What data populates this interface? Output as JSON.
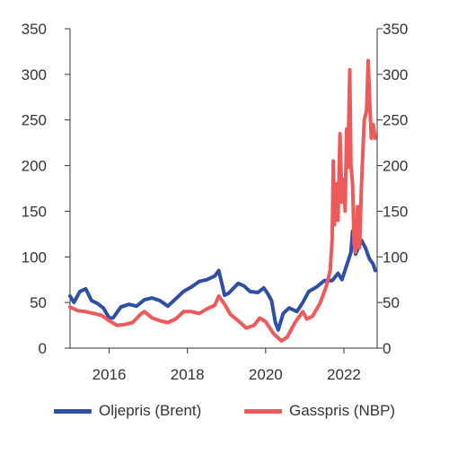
{
  "chart_data": {
    "type": "line",
    "title": "",
    "xlabel": "",
    "ylabel": "",
    "ylim": [
      0,
      350
    ],
    "y_ticks": [
      "0",
      "50",
      "100",
      "150",
      "200",
      "250",
      "300",
      "350"
    ],
    "x_ticks": [
      "2016",
      "2018",
      "2020",
      "2022"
    ],
    "grid": false,
    "legend_position": "bottom",
    "series": [
      {
        "name": "Oljepris (Brent)",
        "color": "#2e4fa3",
        "points": [
          [
            2015.0,
            57
          ],
          [
            2015.1,
            50
          ],
          [
            2015.25,
            62
          ],
          [
            2015.4,
            65
          ],
          [
            2015.55,
            52
          ],
          [
            2015.7,
            49
          ],
          [
            2015.85,
            44
          ],
          [
            2016.0,
            33
          ],
          [
            2016.1,
            33
          ],
          [
            2016.3,
            45
          ],
          [
            2016.5,
            48
          ],
          [
            2016.7,
            46
          ],
          [
            2016.9,
            53
          ],
          [
            2017.1,
            55
          ],
          [
            2017.3,
            52
          ],
          [
            2017.5,
            46
          ],
          [
            2017.7,
            54
          ],
          [
            2017.9,
            62
          ],
          [
            2018.1,
            67
          ],
          [
            2018.3,
            73
          ],
          [
            2018.5,
            75
          ],
          [
            2018.7,
            79
          ],
          [
            2018.8,
            85
          ],
          [
            2018.95,
            58
          ],
          [
            2019.05,
            60
          ],
          [
            2019.3,
            71
          ],
          [
            2019.45,
            68
          ],
          [
            2019.6,
            62
          ],
          [
            2019.8,
            61
          ],
          [
            2019.95,
            66
          ],
          [
            2020.05,
            60
          ],
          [
            2020.15,
            52
          ],
          [
            2020.25,
            28
          ],
          [
            2020.32,
            20
          ],
          [
            2020.45,
            38
          ],
          [
            2020.6,
            44
          ],
          [
            2020.8,
            40
          ],
          [
            2020.95,
            50
          ],
          [
            2021.1,
            62
          ],
          [
            2021.3,
            67
          ],
          [
            2021.5,
            74
          ],
          [
            2021.7,
            74
          ],
          [
            2021.85,
            82
          ],
          [
            2021.95,
            75
          ],
          [
            2022.05,
            88
          ],
          [
            2022.18,
            105
          ],
          [
            2022.22,
            128
          ],
          [
            2022.3,
            103
          ],
          [
            2022.45,
            118
          ],
          [
            2022.55,
            110
          ],
          [
            2022.65,
            98
          ],
          [
            2022.75,
            92
          ],
          [
            2022.8,
            85
          ]
        ]
      },
      {
        "name": "Gasspris (NBP)",
        "color": "#ee5a5a",
        "points": [
          [
            2015.0,
            45
          ],
          [
            2015.2,
            41
          ],
          [
            2015.4,
            40
          ],
          [
            2015.6,
            38
          ],
          [
            2015.8,
            36
          ],
          [
            2016.0,
            30
          ],
          [
            2016.2,
            25
          ],
          [
            2016.4,
            26
          ],
          [
            2016.6,
            28
          ],
          [
            2016.8,
            37
          ],
          [
            2016.9,
            40
          ],
          [
            2017.1,
            33
          ],
          [
            2017.3,
            30
          ],
          [
            2017.5,
            28
          ],
          [
            2017.7,
            32
          ],
          [
            2017.9,
            40
          ],
          [
            2018.1,
            40
          ],
          [
            2018.3,
            38
          ],
          [
            2018.5,
            43
          ],
          [
            2018.7,
            47
          ],
          [
            2018.8,
            57
          ],
          [
            2018.95,
            48
          ],
          [
            2019.1,
            37
          ],
          [
            2019.3,
            30
          ],
          [
            2019.5,
            22
          ],
          [
            2019.7,
            25
          ],
          [
            2019.85,
            33
          ],
          [
            2020.0,
            29
          ],
          [
            2020.2,
            16
          ],
          [
            2020.4,
            8
          ],
          [
            2020.55,
            12
          ],
          [
            2020.75,
            28
          ],
          [
            2020.95,
            40
          ],
          [
            2021.05,
            32
          ],
          [
            2021.2,
            35
          ],
          [
            2021.4,
            50
          ],
          [
            2021.55,
            68
          ],
          [
            2021.65,
            85
          ],
          [
            2021.7,
            120
          ],
          [
            2021.73,
            205
          ],
          [
            2021.76,
            135
          ],
          [
            2021.8,
            180
          ],
          [
            2021.85,
            140
          ],
          [
            2021.9,
            235
          ],
          [
            2021.95,
            160
          ],
          [
            2022.0,
            185
          ],
          [
            2022.03,
            150
          ],
          [
            2022.07,
            240
          ],
          [
            2022.1,
            198
          ],
          [
            2022.15,
            305
          ],
          [
            2022.18,
            200
          ],
          [
            2022.22,
            180
          ],
          [
            2022.26,
            115
          ],
          [
            2022.3,
            105
          ],
          [
            2022.35,
            155
          ],
          [
            2022.4,
            110
          ],
          [
            2022.45,
            180
          ],
          [
            2022.52,
            250
          ],
          [
            2022.58,
            260
          ],
          [
            2022.62,
            315
          ],
          [
            2022.66,
            270
          ],
          [
            2022.7,
            230
          ],
          [
            2022.75,
            245
          ],
          [
            2022.8,
            230
          ]
        ]
      }
    ]
  }
}
